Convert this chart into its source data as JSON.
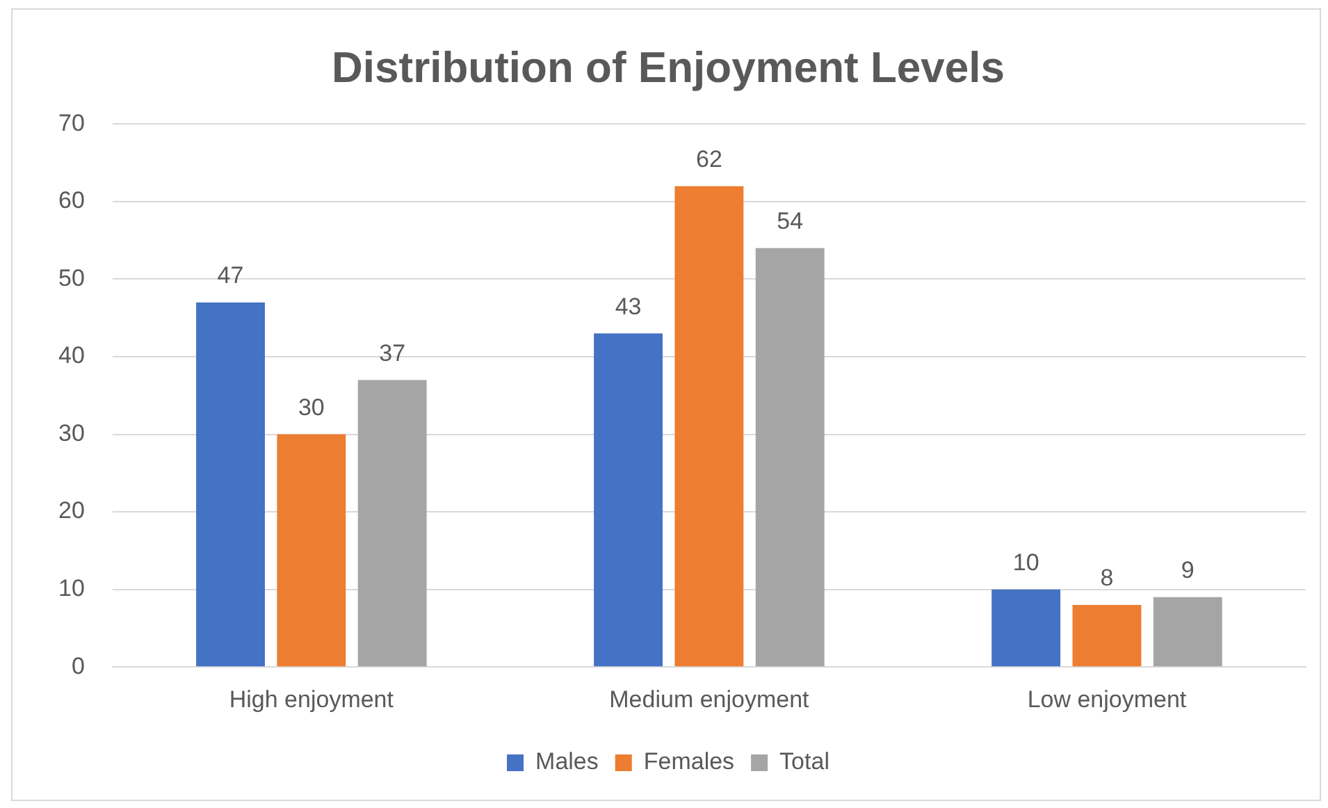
{
  "chart_data": {
    "type": "bar",
    "title": "Distribution of Enjoyment Levels",
    "categories": [
      "High enjoyment",
      "Medium enjoyment",
      "Low enjoyment"
    ],
    "series": [
      {
        "name": "Males",
        "color": "#4472c4",
        "values": [
          47,
          43,
          10
        ]
      },
      {
        "name": "Females",
        "color": "#ed7d31",
        "values": [
          30,
          62,
          8
        ]
      },
      {
        "name": "Total",
        "color": "#a5a5a5",
        "values": [
          37,
          54,
          9
        ]
      }
    ],
    "ylim": [
      0,
      70
    ],
    "yticks": [
      0,
      10,
      20,
      30,
      40,
      50,
      60,
      70
    ],
    "grid": "y",
    "legend": "bottom",
    "data_labels": true
  }
}
